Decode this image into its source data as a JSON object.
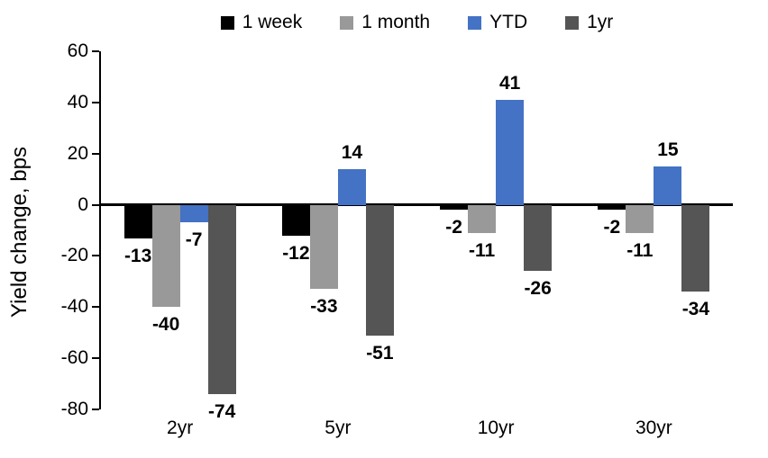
{
  "chart_data": {
    "type": "bar",
    "categories": [
      "2yr",
      "5yr",
      "10yr",
      "30yr"
    ],
    "series": [
      {
        "name": "1 week",
        "color": "#000000",
        "values": [
          -13,
          -12,
          -2,
          -2
        ]
      },
      {
        "name": "1 month",
        "color": "#999999",
        "values": [
          -40,
          -33,
          -11,
          -11
        ]
      },
      {
        "name": "YTD",
        "color": "#4472C4",
        "values": [
          -7,
          14,
          41,
          15
        ]
      },
      {
        "name": "1yr",
        "color": "#555555",
        "values": [
          -74,
          -51,
          -26,
          -34
        ]
      }
    ],
    "xlabel": "",
    "ylabel": "Yield change, bps",
    "ylim": [
      -80,
      60
    ],
    "yticks": [
      60,
      40,
      20,
      0,
      -20,
      -40,
      -60,
      -80
    ],
    "grid": false,
    "legend_position": "top",
    "data_labels": true,
    "axis_color": "#000000",
    "background_color": "#ffffff"
  }
}
